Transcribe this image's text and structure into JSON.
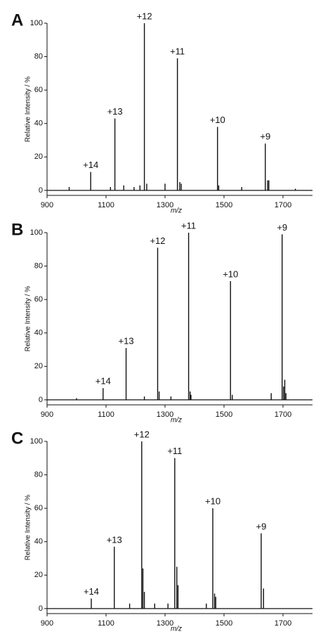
{
  "chart_data": [
    {
      "type": "stem",
      "panel_label": "A",
      "xlabel": "m/z",
      "ylabel": "Relative Intensity / %",
      "xlim": [
        900,
        1800
      ],
      "xticks": [
        900,
        1100,
        1300,
        1500,
        1700
      ],
      "ylim": [
        -3,
        100
      ],
      "yticks": [
        0,
        20,
        40,
        60,
        80,
        100
      ],
      "color": "#111111",
      "series": [
        {
          "x": [
            1048,
            1130,
            1230,
            1342,
            1478,
            1640
          ],
          "values": [
            11,
            43,
            100,
            79,
            38,
            28
          ],
          "charge_labels": [
            "+14",
            "+13",
            "+12",
            "+11",
            "+10",
            "+9"
          ]
        },
        {
          "x": [
            975,
            1115,
            1160,
            1195,
            1215,
            1238,
            1300,
            1350,
            1355,
            1482,
            1560,
            1648,
            1652,
            1742
          ],
          "values": [
            2,
            2,
            3,
            2,
            3,
            4,
            4,
            5,
            4,
            3,
            2,
            6,
            6,
            1
          ]
        }
      ]
    },
    {
      "type": "stem",
      "panel_label": "B",
      "xlabel": "m/z",
      "ylabel": "Relative Intensity / %",
      "xlim": [
        900,
        1800
      ],
      "xticks": [
        900,
        1100,
        1300,
        1500,
        1700
      ],
      "ylim": [
        -3,
        100
      ],
      "yticks": [
        0,
        20,
        40,
        60,
        80,
        100
      ],
      "color": "#111111",
      "series": [
        {
          "x": [
            1090,
            1168,
            1275,
            1380,
            1522,
            1697
          ],
          "values": [
            7,
            31,
            91,
            100,
            71,
            99
          ],
          "charge_labels": [
            "+14",
            "+13",
            "+12",
            "+11",
            "+10",
            "+9"
          ]
        },
        {
          "x": [
            1000,
            1230,
            1280,
            1320,
            1385,
            1388,
            1528,
            1660,
            1702,
            1706,
            1710
          ],
          "values": [
            1,
            2,
            5,
            2,
            5,
            3,
            3,
            4,
            8,
            12,
            4
          ]
        }
      ]
    },
    {
      "type": "stem",
      "panel_label": "C",
      "xlabel": "m/z",
      "ylabel": "Relative Intensity / %",
      "xlim": [
        900,
        1800
      ],
      "xticks": [
        900,
        1100,
        1300,
        1500,
        1700
      ],
      "ylim": [
        -3,
        100
      ],
      "yticks": [
        0,
        20,
        40,
        60,
        80,
        100
      ],
      "color": "#111111",
      "series": [
        {
          "x": [
            1050,
            1128,
            1221,
            1333,
            1462,
            1626
          ],
          "values": [
            6,
            37,
            100,
            90,
            60,
            45
          ],
          "charge_labels": [
            "+14",
            "+13",
            "+12",
            "+11",
            "+10",
            "+9"
          ]
        },
        {
          "x": [
            1180,
            1225,
            1230,
            1265,
            1310,
            1340,
            1344,
            1440,
            1468,
            1472,
            1634
          ],
          "values": [
            3,
            24,
            10,
            3,
            3,
            25,
            14,
            3,
            9,
            7,
            12
          ]
        }
      ]
    }
  ]
}
